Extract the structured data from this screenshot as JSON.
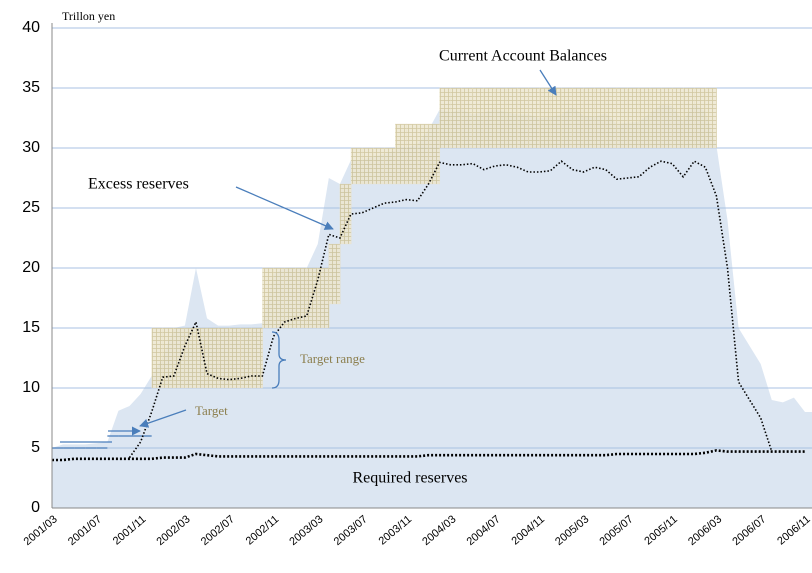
{
  "chart_data": {
    "type": "area",
    "y_label": "Trillon yen",
    "categories": [
      "2001/03",
      null,
      null,
      null,
      "2001/07",
      null,
      null,
      null,
      "2001/11",
      null,
      null,
      null,
      "2002/03",
      null,
      null,
      null,
      "2002/07",
      null,
      null,
      null,
      "2002/11",
      null,
      null,
      null,
      "2003/03",
      null,
      null,
      null,
      "2003/07",
      null,
      null,
      null,
      "2003/11",
      null,
      null,
      null,
      "2004/03",
      null,
      null,
      null,
      "2004/07",
      null,
      null,
      null,
      "2004/11",
      null,
      null,
      null,
      "2005/03",
      null,
      null,
      null,
      "2005/07",
      null,
      null,
      null,
      "2005/11",
      null,
      null,
      null,
      "2006/03",
      null,
      null,
      null,
      "2006/07",
      null,
      null,
      null,
      "2006/11"
    ],
    "ylim": [
      0,
      40
    ],
    "yticks": [
      0,
      5,
      10,
      15,
      20,
      25,
      30,
      35,
      40
    ],
    "grid": true,
    "series": [
      {
        "name": "Current Account Balances",
        "color": "#dce6f2",
        "style": "area",
        "values": [
          5.0,
          5.3,
          5.3,
          5.3,
          5.4,
          5.5,
          8.1,
          8.5,
          9.5,
          11.0,
          12.5,
          15.0,
          15.2,
          20.0,
          15.8,
          15.2,
          15.2,
          15.3,
          15.3,
          15.4,
          19.5,
          20.0,
          20.0,
          20.0,
          22.0,
          27.5,
          27.0,
          29.0,
          29.0,
          29.3,
          29.5,
          29.8,
          30.0,
          30.3,
          31.5,
          33.2,
          33.0,
          33.2,
          32.8,
          33.0,
          33.2,
          33.0,
          32.8,
          32.8,
          32.5,
          32.6,
          32.8,
          33.4,
          32.7,
          32.6,
          32.9,
          32.0,
          32.1,
          32.2,
          32.9,
          33.6,
          33.5,
          32.2,
          33.7,
          33.0,
          30.2,
          24.0,
          15.0,
          13.5,
          12.0,
          9.0,
          8.8,
          9.2,
          8.0
        ]
      },
      {
        "name": "Excess reserves",
        "color": "#000000",
        "style": "dotted",
        "values": [
          null,
          null,
          null,
          null,
          null,
          null,
          null,
          4.2,
          5.5,
          8.0,
          10.9,
          11.0,
          13.5,
          15.5,
          11.2,
          10.8,
          10.7,
          10.8,
          11.0,
          11.0,
          14.3,
          15.5,
          15.8,
          16.0,
          19.0,
          22.8,
          22.5,
          24.5,
          24.6,
          25.0,
          25.4,
          25.5,
          25.7,
          25.6,
          27.0,
          28.8,
          28.6,
          28.6,
          28.7,
          28.2,
          28.5,
          28.6,
          28.4,
          28.0,
          28.0,
          28.1,
          28.9,
          28.2,
          28.0,
          28.4,
          28.2,
          27.4,
          27.5,
          27.6,
          28.4,
          28.9,
          28.7,
          27.6,
          28.9,
          28.4,
          26.0,
          20.0,
          10.5,
          9.0,
          7.5,
          4.7,
          null,
          null,
          null
        ]
      },
      {
        "name": "Required reserves",
        "color": "#000000",
        "style": "dotted-bold",
        "values": [
          4.0,
          4.0,
          4.1,
          4.1,
          4.1,
          4.1,
          4.1,
          4.1,
          4.1,
          4.1,
          4.2,
          4.2,
          4.2,
          4.5,
          4.4,
          4.3,
          4.3,
          4.3,
          4.3,
          4.3,
          4.3,
          4.3,
          4.3,
          4.3,
          4.3,
          4.3,
          4.3,
          4.3,
          4.3,
          4.3,
          4.3,
          4.3,
          4.3,
          4.3,
          4.4,
          4.4,
          4.4,
          4.4,
          4.4,
          4.4,
          4.4,
          4.4,
          4.4,
          4.4,
          4.4,
          4.4,
          4.4,
          4.4,
          4.4,
          4.4,
          4.4,
          4.5,
          4.5,
          4.5,
          4.5,
          4.5,
          4.5,
          4.5,
          4.5,
          4.6,
          4.8,
          4.7,
          4.7,
          4.7,
          4.7,
          4.7,
          4.7,
          4.7,
          4.7
        ]
      }
    ],
    "target": {
      "name": "Target range",
      "label": "Target",
      "color": "#e9e2c6",
      "low": [
        5,
        5,
        5,
        5,
        5,
        6,
        6,
        6,
        6,
        10,
        10,
        10,
        10,
        10,
        10,
        10,
        10,
        10,
        10,
        15,
        15,
        15,
        15,
        15,
        15,
        17,
        22,
        27,
        27,
        27,
        27,
        27,
        27,
        27,
        27,
        30,
        30,
        30,
        30,
        30,
        30,
        30,
        30,
        30,
        30,
        30,
        30,
        30,
        30,
        30,
        30,
        30,
        30,
        30,
        30,
        30,
        30,
        30,
        30,
        30,
        null,
        null,
        null,
        null,
        null,
        null,
        null,
        null,
        null
      ],
      "high": [
        5,
        5,
        5,
        5,
        5,
        6,
        6,
        6,
        6,
        15,
        15,
        15,
        15,
        15,
        15,
        15,
        15,
        15,
        15,
        20,
        20,
        20,
        20,
        20,
        20,
        22,
        27,
        30,
        30,
        30,
        30,
        32,
        32,
        32,
        32,
        35,
        35,
        35,
        35,
        35,
        35,
        35,
        35,
        35,
        35,
        35,
        35,
        35,
        35,
        35,
        35,
        35,
        35,
        35,
        35,
        35,
        35,
        35,
        35,
        35,
        null,
        null,
        null,
        null,
        null,
        null,
        null,
        null,
        null
      ]
    }
  }
}
